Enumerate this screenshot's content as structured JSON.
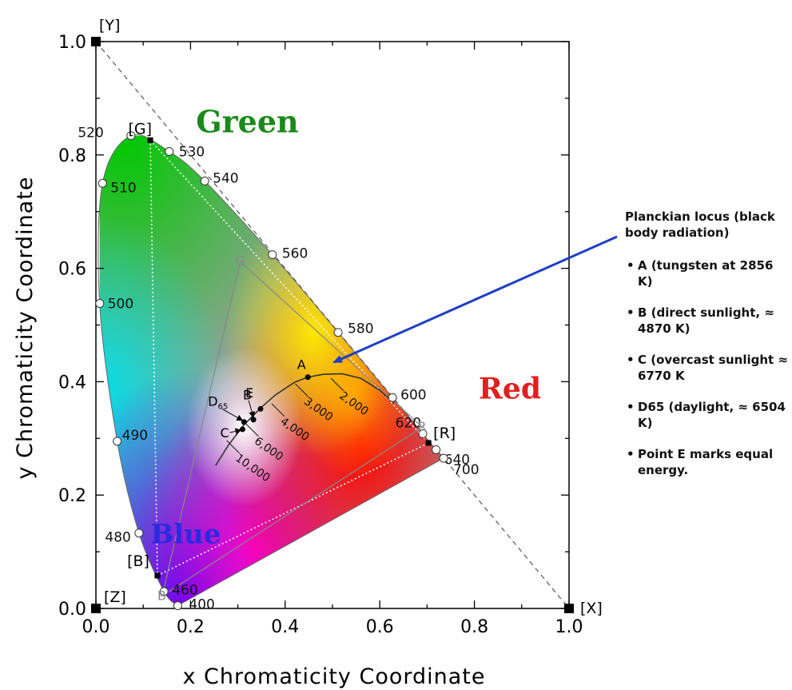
{
  "chart_data": {
    "type": "scatter",
    "title": "",
    "xlabel": "x Chromaticity Coordinate",
    "ylabel": "y Chromaticity Coordinate",
    "xlim": [
      0.0,
      1.0
    ],
    "ylim": [
      0.0,
      1.0
    ],
    "x_ticks": [
      "0.0",
      "0.2",
      "0.4",
      "0.6",
      "0.8",
      "1.0"
    ],
    "y_ticks": [
      "0.0",
      "0.2",
      "0.4",
      "0.6",
      "0.8",
      "1.0"
    ],
    "grid": false,
    "region_labels": [
      {
        "text": "Green",
        "x": 0.32,
        "y": 0.84,
        "color": "#1a8a1a"
      },
      {
        "text": "Red",
        "x": 0.875,
        "y": 0.37,
        "color": "#e0201e"
      },
      {
        "text": "Blue",
        "x": 0.19,
        "y": 0.115,
        "color": "#2a2ae0"
      }
    ],
    "spectral_locus": [
      {
        "wl": "400",
        "x": 0.173,
        "y": 0.005
      },
      {
        "wl": "460",
        "x": 0.144,
        "y": 0.03
      },
      {
        "wl": "480",
        "x": 0.091,
        "y": 0.133
      },
      {
        "wl": "490",
        "x": 0.045,
        "y": 0.295
      },
      {
        "wl": "500",
        "x": 0.008,
        "y": 0.538
      },
      {
        "wl": "510",
        "x": 0.014,
        "y": 0.75
      },
      {
        "wl": "520",
        "x": 0.074,
        "y": 0.834
      },
      {
        "wl": "530",
        "x": 0.155,
        "y": 0.806
      },
      {
        "wl": "540",
        "x": 0.23,
        "y": 0.754
      },
      {
        "wl": "560",
        "x": 0.373,
        "y": 0.624
      },
      {
        "wl": "580",
        "x": 0.512,
        "y": 0.487
      },
      {
        "wl": "600",
        "x": 0.627,
        "y": 0.372
      },
      {
        "wl": "620",
        "x": 0.691,
        "y": 0.308
      },
      {
        "wl": "640",
        "x": 0.719,
        "y": 0.28
      },
      {
        "wl": "700",
        "x": 0.735,
        "y": 0.265
      }
    ],
    "primaries": [
      {
        "label": "[G]",
        "x": 0.115,
        "y": 0.826
      },
      {
        "label": "[R]",
        "x": 0.703,
        "y": 0.292
      },
      {
        "label": "[B]",
        "x": 0.13,
        "y": 0.058
      }
    ],
    "corners": [
      {
        "label": "[Y]",
        "x": 0.0,
        "y": 1.0
      },
      {
        "label": "[X]",
        "x": 1.0,
        "y": 0.0
      },
      {
        "label": "[Z]",
        "x": 0.0,
        "y": 0.0
      }
    ],
    "inner_gamut_labels": [
      {
        "label": "G",
        "x": 0.305,
        "y": 0.612
      },
      {
        "label": "R",
        "x": 0.69,
        "y": 0.32
      },
      {
        "label": "B",
        "x": 0.14,
        "y": 0.022
      }
    ],
    "planckian_locus": [
      {
        "x": 0.253,
        "y": 0.252
      },
      {
        "x": 0.28,
        "y": 0.288
      },
      {
        "x": 0.313,
        "y": 0.324
      },
      {
        "x": 0.35,
        "y": 0.355
      },
      {
        "x": 0.38,
        "y": 0.377
      },
      {
        "x": 0.42,
        "y": 0.399
      },
      {
        "x": 0.448,
        "y": 0.408
      },
      {
        "x": 0.48,
        "y": 0.413
      },
      {
        "x": 0.52,
        "y": 0.414
      },
      {
        "x": 0.56,
        "y": 0.406
      },
      {
        "x": 0.6,
        "y": 0.385
      },
      {
        "x": 0.63,
        "y": 0.362
      }
    ],
    "temperature_labels": [
      {
        "text": "10,000",
        "x": 0.29,
        "y": 0.285
      },
      {
        "text": "6,000",
        "x": 0.33,
        "y": 0.315
      },
      {
        "text": "4,000",
        "x": 0.385,
        "y": 0.35
      },
      {
        "text": "3,000",
        "x": 0.435,
        "y": 0.385
      },
      {
        "text": "2,000",
        "x": 0.51,
        "y": 0.395
      }
    ],
    "reference_points": [
      {
        "label": "A",
        "x": 0.448,
        "y": 0.408
      },
      {
        "label": "B",
        "x": 0.348,
        "y": 0.352
      },
      {
        "label": "C",
        "x": 0.31,
        "y": 0.316
      },
      {
        "label": "D65",
        "x": 0.313,
        "y": 0.329
      },
      {
        "label": "E",
        "x": 0.333,
        "y": 0.333
      }
    ]
  },
  "notes": {
    "title": "Planckian locus (black body radiation)",
    "items": [
      "A (tungsten at 2856 K)",
      "B (direct sunlight, ≈ 4870 K)",
      "C (overcast sunlight ≈ 6770 K",
      "D65 (daylight, ≈ 6504 K)",
      "Point E marks equal energy."
    ]
  },
  "colors": {
    "arrow": "#1f3fc4",
    "green": "#1a8a1a",
    "red": "#e0201e",
    "blue": "#2a2ae0"
  }
}
